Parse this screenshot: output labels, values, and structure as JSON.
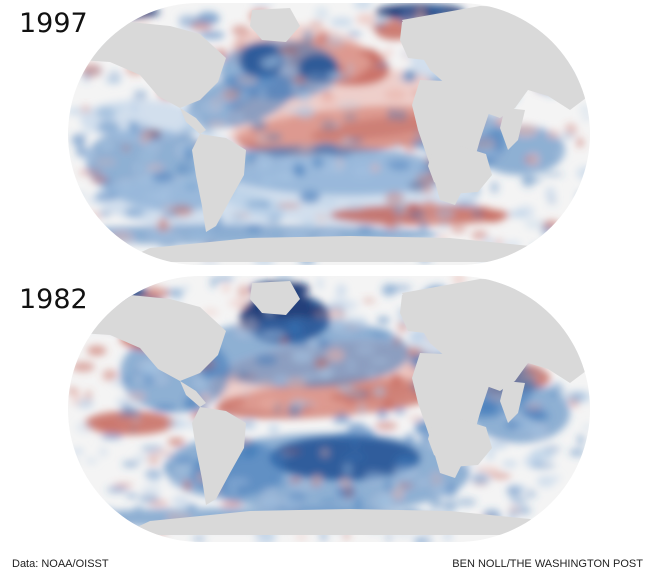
{
  "maps": [
    {
      "year": "1997",
      "pattern": "strong-el-nino",
      "palette": {
        "ocean": "#f4f4f4",
        "land": "#d9d9d9",
        "warm_strong": "#6a0f0f",
        "warm": "#c0554a",
        "warm_light": "#eab1a8",
        "cool_strong": "#0b2e6f",
        "cool": "#3b76b8",
        "cool_light": "#a9c6e4"
      }
    },
    {
      "year": "1982",
      "pattern": "el-nino",
      "palette": {
        "ocean": "#f4f4f4",
        "land": "#d9d9d9",
        "warm_strong": "#7a1c14",
        "warm": "#c0554a",
        "warm_light": "#eab1a8",
        "cool_strong": "#0b2e6f",
        "cool": "#3b76b8",
        "cool_light": "#a9c6e4"
      }
    }
  ],
  "footer": {
    "source": "Data: NOAA/OISST",
    "credit": "BEN NOLL/THE WASHINGTON POST"
  }
}
